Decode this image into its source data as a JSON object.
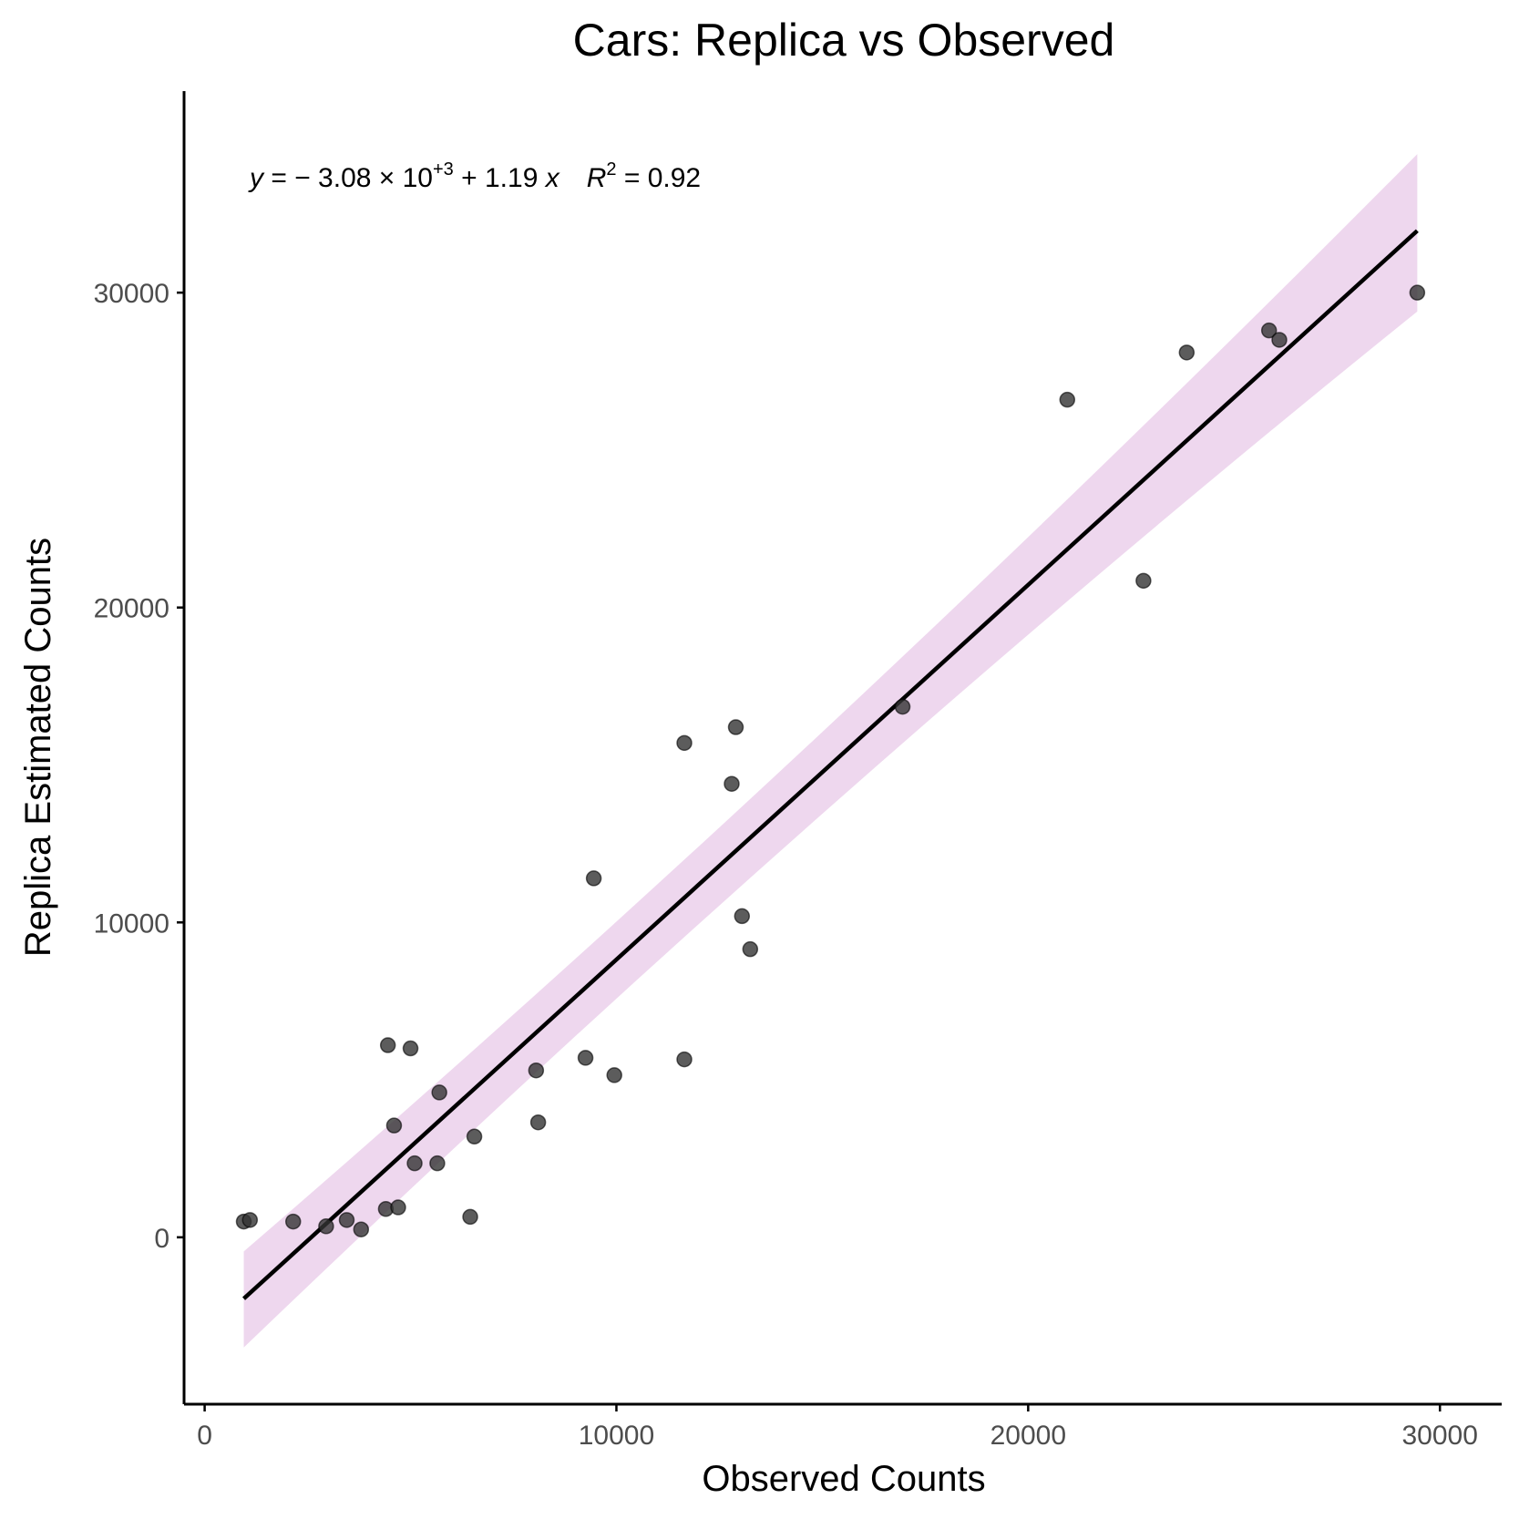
{
  "chart_data": {
    "type": "scatter",
    "title": "Cars: Replica vs Observed",
    "xlabel": "Observed Counts",
    "ylabel": "Replica Estimated Counts",
    "xlim": [
      -500,
      31500
    ],
    "ylim": [
      -5300,
      36400
    ],
    "x_ticks": [
      0,
      10000,
      20000,
      30000
    ],
    "y_ticks": [
      0,
      10000,
      20000,
      30000
    ],
    "x_tick_labels": [
      "0",
      "10000",
      "20000",
      "30000"
    ],
    "y_tick_labels": [
      "0",
      "10000",
      "20000",
      "30000"
    ],
    "points": [
      {
        "x": 950,
        "y": 500
      },
      {
        "x": 1100,
        "y": 550
      },
      {
        "x": 2150,
        "y": 500
      },
      {
        "x": 2950,
        "y": 350
      },
      {
        "x": 3450,
        "y": 550
      },
      {
        "x": 3800,
        "y": 250
      },
      {
        "x": 4400,
        "y": 900
      },
      {
        "x": 4700,
        "y": 950
      },
      {
        "x": 4600,
        "y": 3550
      },
      {
        "x": 4450,
        "y": 6100
      },
      {
        "x": 5000,
        "y": 6000
      },
      {
        "x": 5100,
        "y": 2350
      },
      {
        "x": 5650,
        "y": 2350
      },
      {
        "x": 5700,
        "y": 4600
      },
      {
        "x": 6450,
        "y": 650
      },
      {
        "x": 6550,
        "y": 3200
      },
      {
        "x": 8050,
        "y": 5300
      },
      {
        "x": 8100,
        "y": 3650
      },
      {
        "x": 9250,
        "y": 5700
      },
      {
        "x": 9450,
        "y": 11400
      },
      {
        "x": 9950,
        "y": 5150
      },
      {
        "x": 11650,
        "y": 15700
      },
      {
        "x": 11650,
        "y": 5650
      },
      {
        "x": 12800,
        "y": 14400
      },
      {
        "x": 12900,
        "y": 16200
      },
      {
        "x": 13050,
        "y": 10200
      },
      {
        "x": 13250,
        "y": 9150
      },
      {
        "x": 16950,
        "y": 16850
      },
      {
        "x": 20950,
        "y": 26600
      },
      {
        "x": 22800,
        "y": 20850
      },
      {
        "x": 23850,
        "y": 28100
      },
      {
        "x": 25850,
        "y": 28800
      },
      {
        "x": 26100,
        "y": 28500
      },
      {
        "x": 29450,
        "y": 30000
      }
    ],
    "regression": {
      "intercept": -3080,
      "slope": 1.19,
      "x_range": [
        950,
        29450
      ],
      "ci_low_start": -3500,
      "ci_high_start": -450,
      "ci_low_end": 29400,
      "ci_high_end": 34400
    },
    "annotation": {
      "y_sym": "y",
      "eq_pre": " = − 3.08 × 10",
      "exp": "+3",
      "eq_mid": " + 1.19 ",
      "x_sym": "x",
      "r_sym": "R",
      "r_exp": "2",
      "r_post": " = 0.92"
    },
    "colors": {
      "point_fill": "#333333",
      "point_stroke": "#000000",
      "line": "#000000",
      "band": "#e8c9e8",
      "axis": "#000000"
    }
  }
}
